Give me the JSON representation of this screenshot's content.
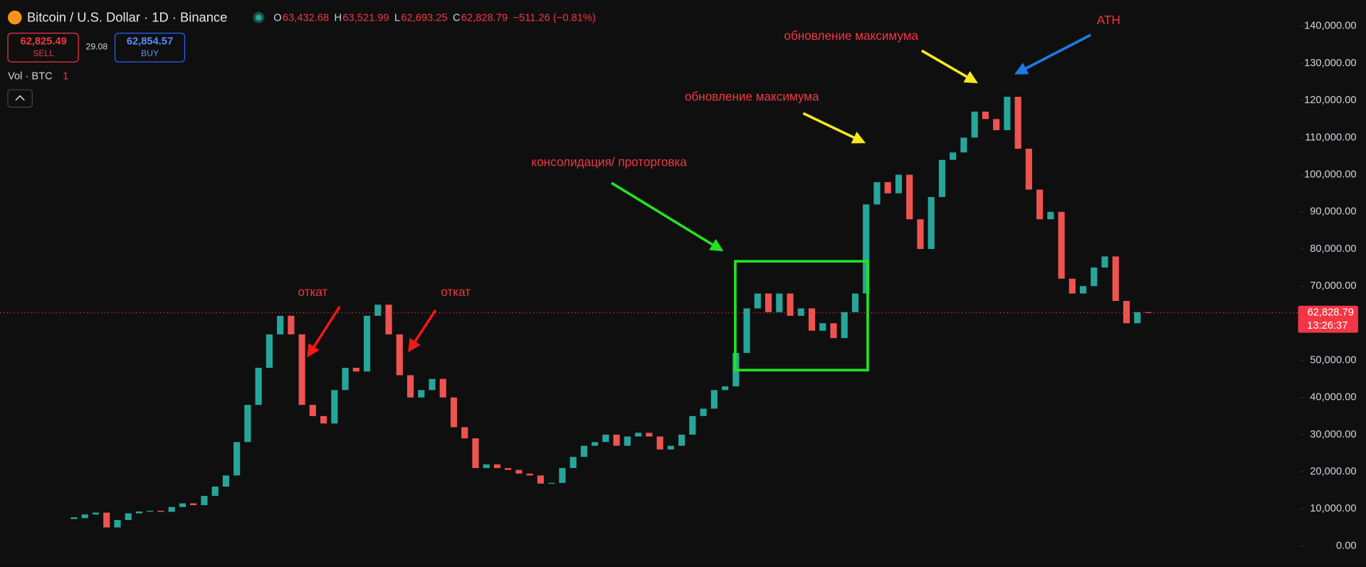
{
  "chart_data": {
    "type": "candlestick",
    "title": "Bitcoin / U.S. Dollar · 1D · Binance",
    "ohlc": [
      {
        "key": "O",
        "text": "63,432.68"
      },
      {
        "key": "H",
        "text": "63,521.99"
      },
      {
        "key": "L",
        "text": "62,693.25"
      },
      {
        "key": "C",
        "text": "62,828.79"
      }
    ],
    "change": "−511.26 (−0.81%)",
    "sell": {
      "price": "62,825.49",
      "label": "SELL"
    },
    "spread": "29.08",
    "buy": {
      "price": "62,854.57",
      "label": "BUY"
    },
    "volume_label": "Vol · BTC",
    "volume_value": "1",
    "up_color": "#26a69a",
    "down_color": "#ef5350",
    "values": [
      7500,
      8500,
      9000,
      5000,
      7000,
      8800,
      9300,
      9500,
      9200,
      10500,
      11500,
      11000,
      13500,
      16000,
      19000,
      28000,
      38000,
      48000,
      57000,
      62000,
      57000,
      38000,
      35000,
      33000,
      42000,
      48000,
      47000,
      62000,
      65000,
      57000,
      46000,
      40000,
      42000,
      45000,
      40000,
      32000,
      29000,
      21000,
      22000,
      21000,
      20500,
      19500,
      19000,
      16800,
      17000,
      21000,
      24000,
      27000,
      28000,
      30000,
      27000,
      29500,
      30500,
      29500,
      26000,
      27000,
      30000,
      35000,
      37000,
      42000,
      43000,
      52000,
      64000,
      68000,
      63000,
      68000,
      62000,
      64000,
      58000,
      60000,
      56000,
      63000,
      68000,
      92000,
      98000,
      95000,
      100000,
      88000,
      80000,
      94000,
      104000,
      106000,
      110000,
      117000,
      115000,
      112000,
      121000,
      107000,
      96000,
      88000,
      90000,
      72000,
      68000,
      70000,
      75000,
      78000,
      66000,
      60000,
      63000,
      62828.79
    ],
    "ylim": [
      0,
      140000
    ],
    "yticks": [
      {
        "value": 0,
        "label": "0.00"
      },
      {
        "value": 10000,
        "label": "10,000.00"
      },
      {
        "value": 20000,
        "label": "20,000.00"
      },
      {
        "value": 30000,
        "label": "30,000.00"
      },
      {
        "value": 40000,
        "label": "40,000.00"
      },
      {
        "value": 50000,
        "label": "50,000.00"
      },
      {
        "value": 60000,
        "label": "60,000.00"
      },
      {
        "value": 70000,
        "label": "70,000.00"
      },
      {
        "value": 80000,
        "label": "80,000.00"
      },
      {
        "value": 90000,
        "label": "90,000.00"
      },
      {
        "value": 100000,
        "label": "100,000.00"
      },
      {
        "value": 110000,
        "label": "110,000.00"
      },
      {
        "value": 120000,
        "label": "120,000.00"
      },
      {
        "value": 130000,
        "label": "130,000.00"
      },
      {
        "value": 140000,
        "label": "140,000.00"
      }
    ],
    "last_price": {
      "value": 62828.79,
      "label": "62,828.79"
    },
    "countdown": "13:26:37",
    "annotations": [
      "откат",
      "откат",
      "консолидация/ проторговка",
      "обновление максимума",
      "обновление максимума",
      "ATH"
    ]
  }
}
